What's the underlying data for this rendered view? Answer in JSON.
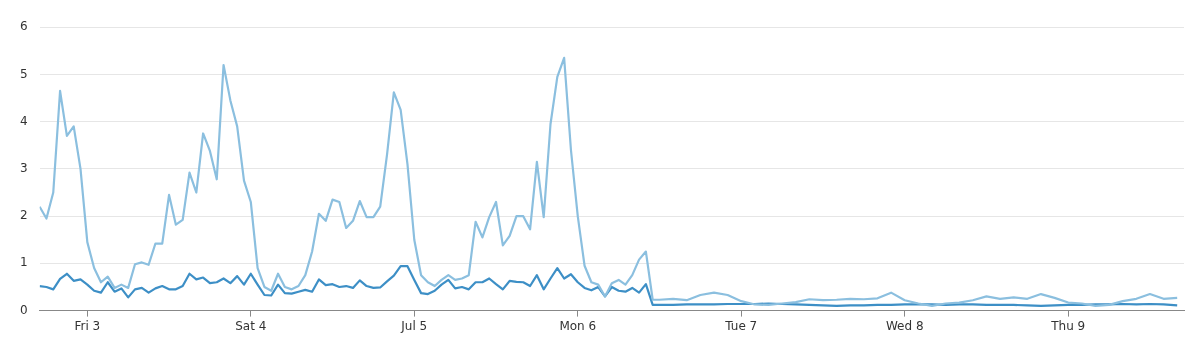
{
  "chart_data": {
    "type": "line",
    "x": [
      "--07-02T17:00",
      "--07-02T18:00",
      "--07-02T19:00",
      "--07-02T20:00",
      "--07-02T21:00",
      "--07-02T22:00",
      "--07-02T23:00",
      "--07-03T00:00",
      "--07-03T01:00",
      "--07-03T02:00",
      "--07-03T03:00",
      "--07-03T04:00",
      "--07-03T05:00",
      "--07-03T06:00",
      "--07-03T07:00",
      "--07-03T08:00",
      "--07-03T09:00",
      "--07-03T10:00",
      "--07-03T11:00",
      "--07-03T12:00",
      "--07-03T13:00",
      "--07-03T14:00",
      "--07-03T15:00",
      "--07-03T16:00",
      "--07-03T17:00",
      "--07-03T18:00",
      "--07-03T19:00",
      "--07-03T20:00",
      "--07-03T21:00",
      "--07-03T22:00",
      "--07-03T23:00",
      "--07-04T00:00",
      "--07-04T01:00",
      "--07-04T02:00",
      "--07-04T03:00",
      "--07-04T04:00",
      "--07-04T05:00",
      "--07-04T06:00",
      "--07-04T07:00",
      "--07-04T08:00",
      "--07-04T09:00",
      "--07-04T10:00",
      "--07-04T11:00",
      "--07-04T12:00",
      "--07-04T13:00",
      "--07-04T14:00",
      "--07-04T15:00",
      "--07-04T16:00",
      "--07-04T17:00",
      "--07-04T18:00",
      "--07-04T19:00",
      "--07-04T20:00",
      "--07-04T21:00",
      "--07-04T22:00",
      "--07-04T23:00",
      "--07-05T00:00",
      "--07-05T01:00",
      "--07-05T02:00",
      "--07-05T03:00",
      "--07-05T04:00",
      "--07-05T05:00",
      "--07-05T06:00",
      "--07-05T07:00",
      "--07-05T08:00",
      "--07-05T09:00",
      "--07-05T10:00",
      "--07-05T11:00",
      "--07-05T12:00",
      "--07-05T13:00",
      "--07-05T14:00",
      "--07-05T15:00",
      "--07-05T16:00",
      "--07-05T17:00",
      "--07-05T18:00",
      "--07-05T19:00",
      "--07-05T20:00",
      "--07-05T21:00",
      "--07-05T22:00",
      "--07-05T23:00",
      "--07-06T00:00",
      "--07-06T01:00",
      "--07-06T02:00",
      "--07-06T03:00",
      "--07-06T04:00",
      "--07-06T05:00",
      "--07-06T06:00",
      "--07-06T07:00",
      "--07-06T08:00",
      "--07-06T09:00",
      "--07-06T10:00",
      "--07-06T11:00",
      "--07-06T12:00",
      "--07-06T14:00",
      "--07-06T16:00",
      "--07-06T18:00",
      "--07-06T20:00",
      "--07-06T22:00",
      "--07-07T00:00",
      "--07-07T02:00",
      "--07-07T04:00",
      "--07-07T06:00",
      "--07-07T08:00",
      "--07-07T10:00",
      "--07-07T12:00",
      "--07-07T14:00",
      "--07-07T16:00",
      "--07-07T18:00",
      "--07-07T20:00",
      "--07-07T22:00",
      "--07-08T00:00",
      "--07-08T02:00",
      "--07-08T04:00",
      "--07-08T06:00",
      "--07-08T08:00",
      "--07-08T10:00",
      "--07-08T12:00",
      "--07-08T14:00",
      "--07-08T16:00",
      "--07-08T18:00",
      "--07-08T20:00",
      "--07-08T22:00",
      "--07-09T00:00",
      "--07-09T02:00",
      "--07-09T04:00",
      "--07-09T06:00",
      "--07-09T08:00",
      "--07-09T10:00",
      "--07-09T12:00",
      "--07-09T14:00",
      "--07-09T16:00"
    ],
    "series": [
      {
        "color": "#8bbfdf",
        "values": [
          2.2,
          1.95,
          2.5,
          4.65,
          3.7,
          3.9,
          3.0,
          1.45,
          0.9,
          0.6,
          0.72,
          0.48,
          0.55,
          0.48,
          0.98,
          1.02,
          0.97,
          1.42,
          1.42,
          2.45,
          1.82,
          1.92,
          2.92,
          2.5,
          3.75,
          3.38,
          2.78,
          5.2,
          4.45,
          3.9,
          2.75,
          2.3,
          0.9,
          0.5,
          0.42,
          0.78,
          0.5,
          0.45,
          0.52,
          0.75,
          1.25,
          2.05,
          1.9,
          2.35,
          2.3,
          1.75,
          1.9,
          2.32,
          1.98,
          1.98,
          2.2,
          3.3,
          4.62,
          4.25,
          3.1,
          1.5,
          0.75,
          0.6,
          0.52,
          0.65,
          0.75,
          0.65,
          0.68,
          0.75,
          1.88,
          1.55,
          1.98,
          2.3,
          1.38,
          1.58,
          2.0,
          2.0,
          1.72,
          3.15,
          1.98,
          3.95,
          4.95,
          5.35,
          3.4,
          2.0,
          0.95,
          0.6,
          0.55,
          0.3,
          0.58,
          0.65,
          0.55,
          0.75,
          1.08,
          1.25,
          0.23,
          0.23,
          0.25,
          0.22,
          0.33,
          0.38,
          0.33,
          0.2,
          0.13,
          0.12,
          0.15,
          0.18,
          0.24,
          0.22,
          0.23,
          0.25,
          0.24,
          0.26,
          0.38,
          0.22,
          0.15,
          0.1,
          0.15,
          0.17,
          0.22,
          0.3,
          0.25,
          0.28,
          0.25,
          0.35,
          0.27,
          0.17,
          0.15,
          0.1,
          0.12,
          0.2,
          0.25,
          0.35,
          0.25,
          0.27
        ]
      },
      {
        "color": "#3d8fc6",
        "values": [
          0.52,
          0.5,
          0.45,
          0.67,
          0.78,
          0.63,
          0.66,
          0.55,
          0.42,
          0.38,
          0.6,
          0.4,
          0.47,
          0.28,
          0.45,
          0.48,
          0.38,
          0.47,
          0.52,
          0.45,
          0.45,
          0.52,
          0.78,
          0.66,
          0.7,
          0.58,
          0.6,
          0.68,
          0.58,
          0.73,
          0.55,
          0.78,
          0.55,
          0.33,
          0.32,
          0.55,
          0.37,
          0.36,
          0.4,
          0.44,
          0.4,
          0.66,
          0.54,
          0.56,
          0.5,
          0.52,
          0.48,
          0.64,
          0.52,
          0.48,
          0.49,
          0.62,
          0.74,
          0.94,
          0.94,
          0.65,
          0.37,
          0.35,
          0.42,
          0.55,
          0.65,
          0.47,
          0.5,
          0.45,
          0.6,
          0.6,
          0.68,
          0.56,
          0.45,
          0.63,
          0.61,
          0.6,
          0.52,
          0.75,
          0.45,
          0.68,
          0.9,
          0.68,
          0.77,
          0.6,
          0.48,
          0.43,
          0.5,
          0.3,
          0.5,
          0.42,
          0.4,
          0.48,
          0.38,
          0.56,
          0.12,
          0.12,
          0.12,
          0.13,
          0.13,
          0.13,
          0.14,
          0.14,
          0.14,
          0.15,
          0.14,
          0.13,
          0.12,
          0.11,
          0.1,
          0.11,
          0.11,
          0.12,
          0.12,
          0.13,
          0.13,
          0.13,
          0.12,
          0.13,
          0.13,
          0.12,
          0.12,
          0.12,
          0.11,
          0.1,
          0.11,
          0.12,
          0.12,
          0.13,
          0.13,
          0.14,
          0.13,
          0.14,
          0.13,
          0.11
        ]
      }
    ],
    "xlim": [
      "--07-02T17:00",
      "--07-09T17:00"
    ],
    "xticks": [
      {
        "value": "--07-03",
        "label": "Fri 3"
      },
      {
        "value": "--07-04",
        "label": "Sat 4"
      },
      {
        "value": "--07-05",
        "label": "Jul 5"
      },
      {
        "value": "--07-06",
        "label": "Mon 6"
      },
      {
        "value": "--07-07",
        "label": "Tue 7"
      },
      {
        "value": "--07-08",
        "label": "Wed 8"
      },
      {
        "value": "--07-09",
        "label": "Thu 9"
      }
    ],
    "ylim": [
      0,
      6
    ],
    "yticks": [
      0,
      1,
      2,
      3,
      4,
      5,
      6
    ],
    "grid": "y",
    "legend": false,
    "marker": "none",
    "line_style": "solid"
  }
}
